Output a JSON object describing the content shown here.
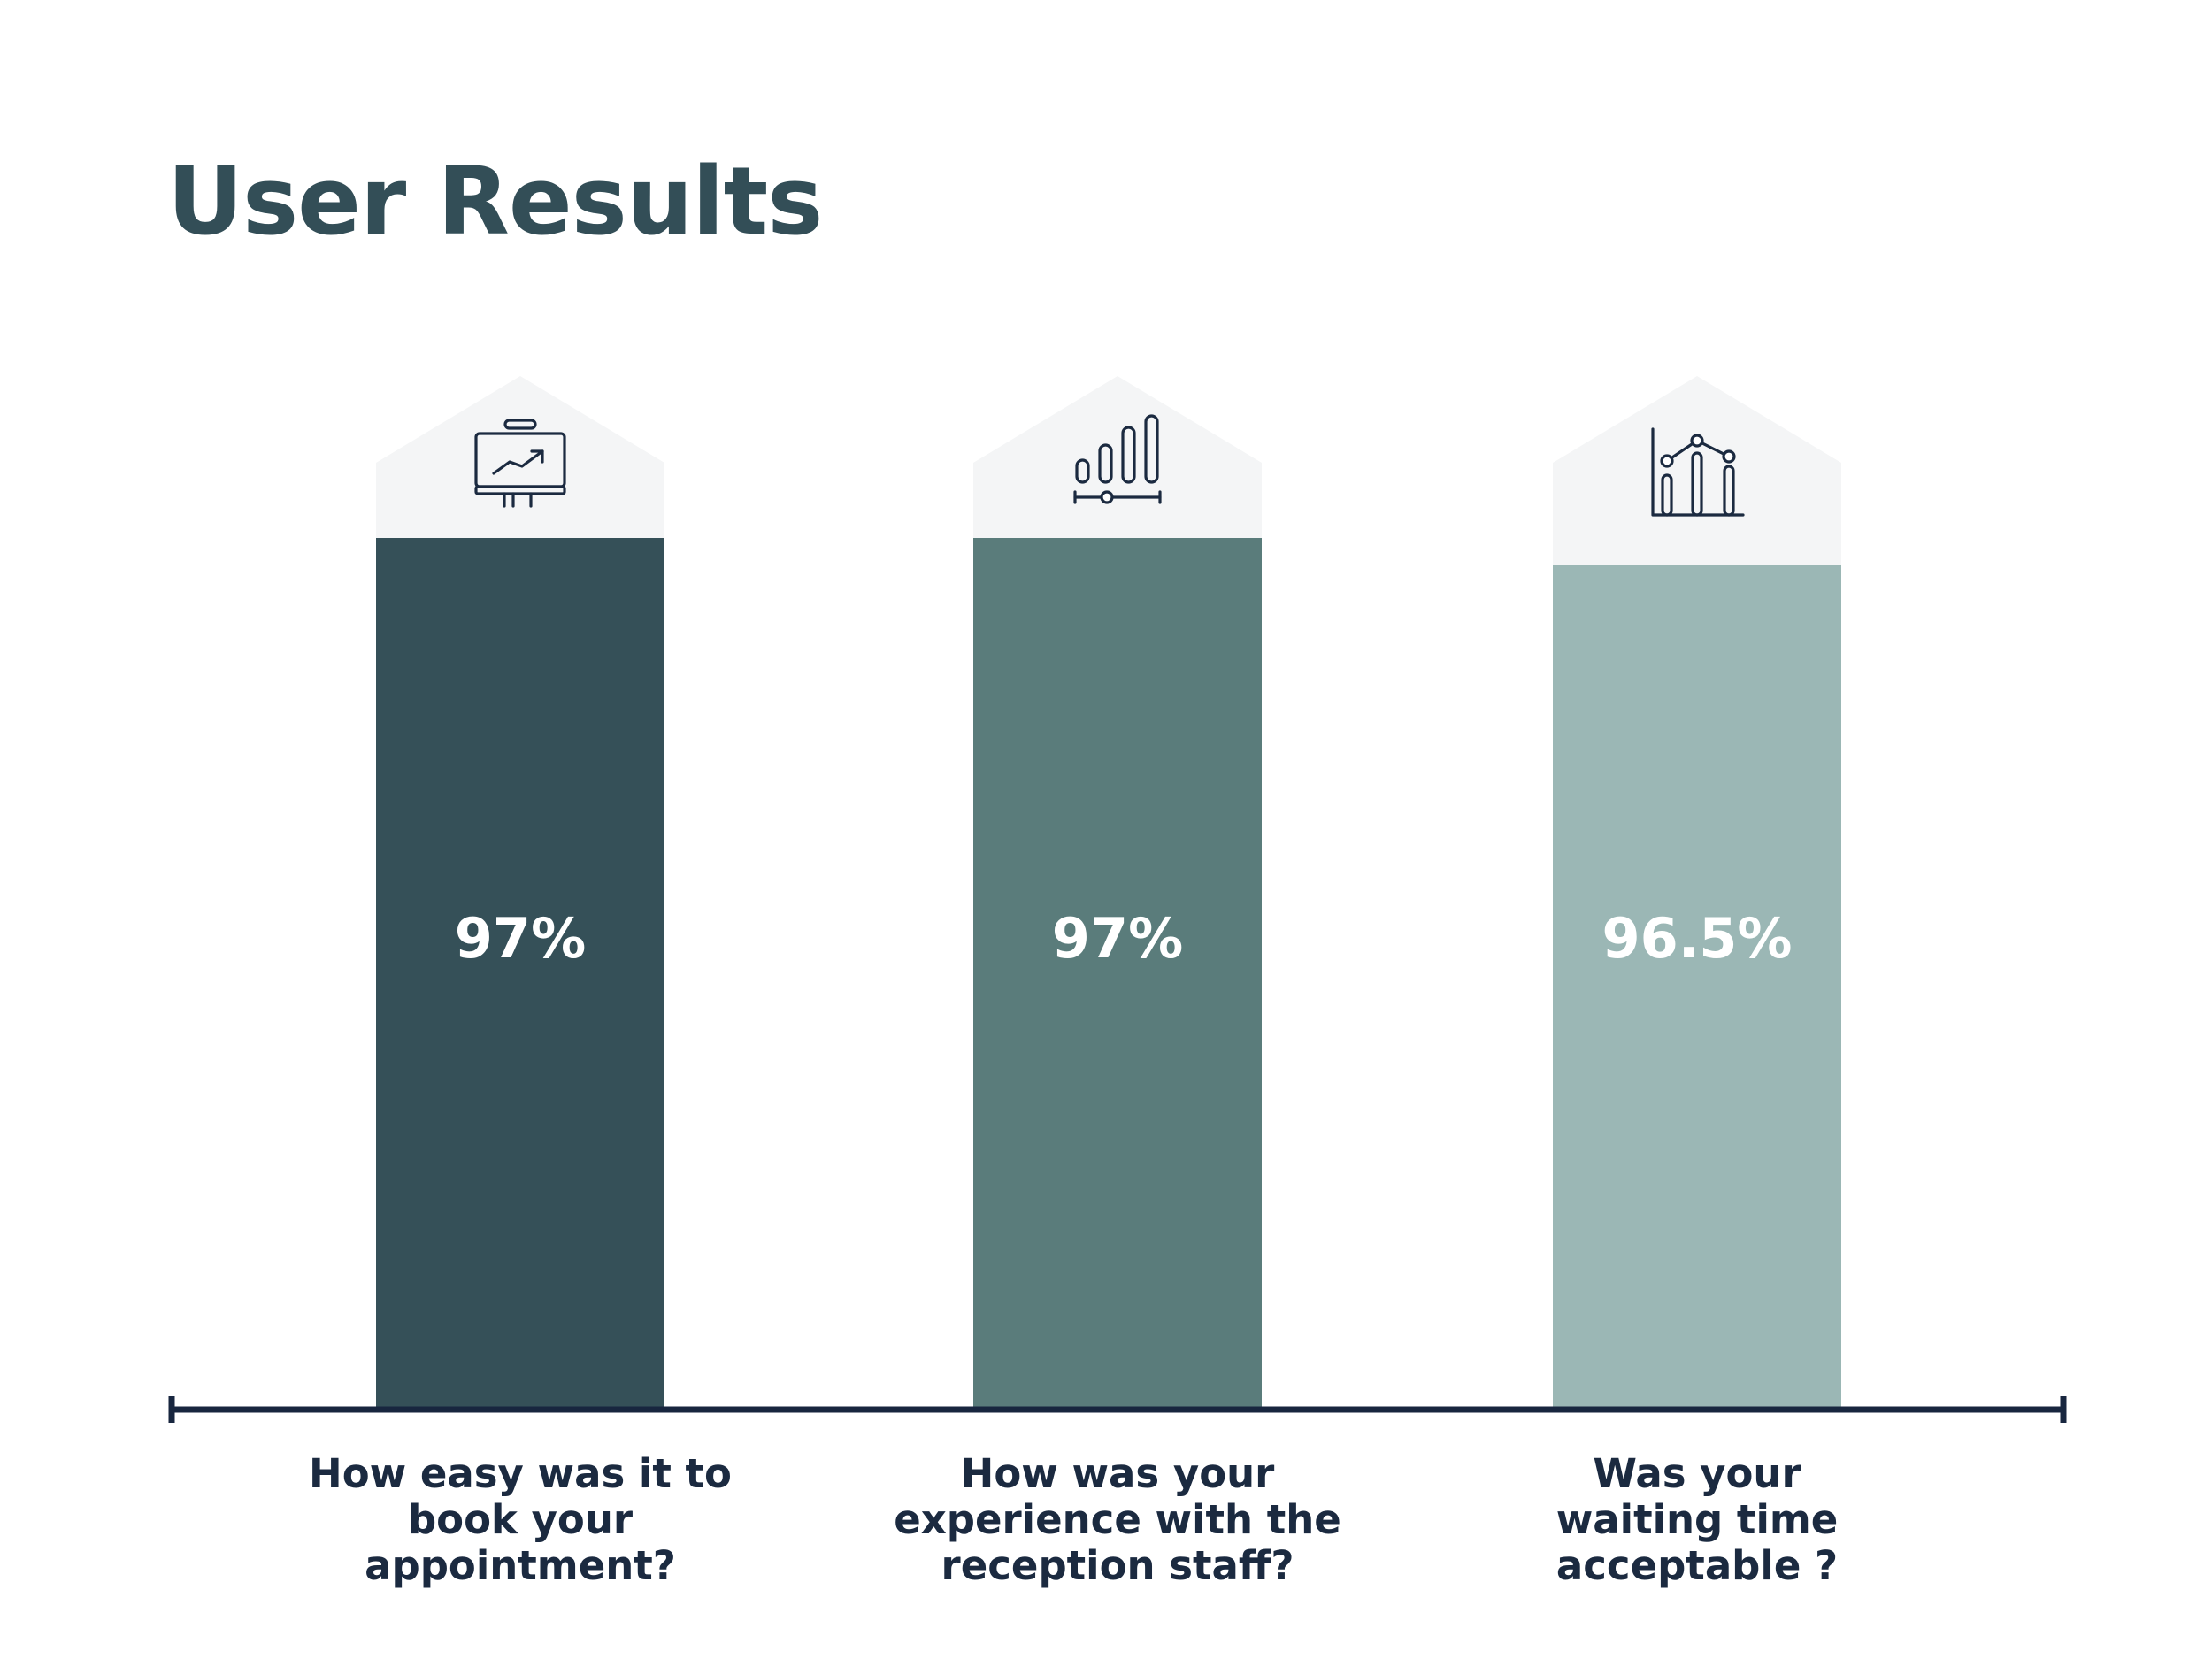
{
  "title": "User Results",
  "colors": {
    "title": "#334e57",
    "axis": "#18263f",
    "cap": "#f4f5f6",
    "icon": "#1b2a40",
    "bars": [
      "#355058",
      "#5a7c7b",
      "#9bb7b5"
    ]
  },
  "icons": [
    "presentation-chart-icon",
    "bar-levels-icon",
    "line-bar-chart-icon"
  ],
  "chart_data": {
    "type": "bar",
    "categories": [
      "How easy was it to book your appointment?",
      "How was your experience with the reception staff?",
      "Was your waiting time acceptable ?"
    ],
    "category_lines": [
      [
        "How easy was it to",
        "book your",
        "appointment?"
      ],
      [
        "How was your",
        "experience with the",
        "reception staff?"
      ],
      [
        "Was your",
        "waiting time",
        "acceptable ?"
      ]
    ],
    "values": [
      97,
      97,
      96.5
    ],
    "value_labels": [
      "97%",
      "97%",
      "96.5%"
    ],
    "ylim": [
      0,
      100
    ],
    "legend": "none",
    "grid": false
  }
}
